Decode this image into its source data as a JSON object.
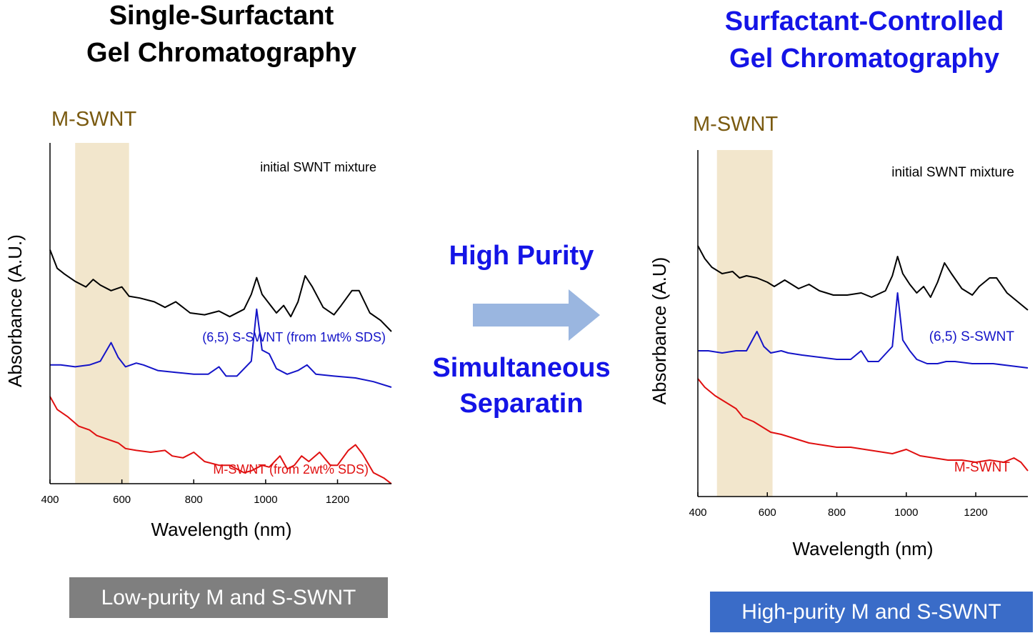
{
  "left_title": {
    "line1": "Single-Surfactant",
    "line2": "Gel Chromatography"
  },
  "right_title": {
    "line1": "Surfactant-Controlled",
    "line2": "Gel Chromatography"
  },
  "middle": {
    "line1": "High Purity",
    "line2": "Simultaneous",
    "line3": "Separatin"
  },
  "arrow_icon": "right-arrow-icon",
  "left_badge": "Low-purity M and S-SWNT",
  "right_badge": "High-purity M and S-SWNT",
  "colors": {
    "black": "#000000",
    "blue": "#1414c8",
    "red": "#e01010",
    "highlight": "#f2e6cc",
    "title_blue": "#1414e6",
    "brown": "#7a5a10"
  },
  "chart_data": [
    {
      "type": "line",
      "title": "",
      "xlabel": "Wavelength (nm)",
      "ylabel": "Absorbance (A.U.)",
      "xlim": [
        400,
        1350
      ],
      "xticks": [
        400,
        600,
        800,
        1000,
        1200
      ],
      "highlight": {
        "label": "M-SWNT",
        "x_range": [
          470,
          620
        ]
      },
      "series": [
        {
          "name": "initial SWNT mixture",
          "color": "#000000",
          "offset": 0.74,
          "x": [
            400,
            420,
            440,
            470,
            500,
            520,
            540,
            570,
            600,
            620,
            650,
            690,
            720,
            750,
            790,
            830,
            870,
            900,
            940,
            960,
            975,
            990,
            1010,
            1030,
            1050,
            1070,
            1090,
            1110,
            1130,
            1160,
            1190,
            1210,
            1240,
            1260,
            1290,
            1320,
            1350
          ],
          "y": [
            0.3,
            0.2,
            0.17,
            0.13,
            0.1,
            0.14,
            0.11,
            0.08,
            0.1,
            0.05,
            0.04,
            0.02,
            -0.01,
            0.02,
            -0.04,
            -0.05,
            -0.03,
            -0.06,
            -0.02,
            0.06,
            0.15,
            0.06,
            0.01,
            -0.04,
            0.0,
            -0.06,
            0.02,
            0.16,
            0.1,
            -0.01,
            -0.05,
            0.0,
            0.08,
            0.08,
            -0.04,
            -0.08,
            -0.14
          ]
        },
        {
          "name": "(6,5) S-SWNT (from 1wt% SDS)",
          "color": "#1414c8",
          "offset": 0.42,
          "x": [
            400,
            430,
            470,
            510,
            540,
            570,
            590,
            610,
            640,
            660,
            700,
            750,
            800,
            840,
            870,
            890,
            920,
            960,
            975,
            990,
            1010,
            1030,
            1060,
            1090,
            1115,
            1140,
            1190,
            1250,
            1300,
            1350
          ],
          "y": [
            0.0,
            0.0,
            -0.01,
            0.0,
            0.02,
            0.12,
            0.04,
            -0.01,
            0.01,
            0.0,
            -0.03,
            -0.04,
            -0.05,
            -0.05,
            -0.01,
            -0.06,
            -0.06,
            0.02,
            0.3,
            0.08,
            0.06,
            -0.02,
            -0.05,
            -0.03,
            0.0,
            -0.05,
            -0.06,
            -0.07,
            -0.09,
            -0.12
          ]
        },
        {
          "name": "M-SWNT (from 2wt% SDS)",
          "color": "#e01010",
          "offset": 0.0,
          "x": [
            400,
            420,
            450,
            480,
            510,
            530,
            560,
            590,
            610,
            640,
            680,
            720,
            740,
            770,
            800,
            830,
            870,
            900,
            940,
            960,
            990,
            1010,
            1040,
            1060,
            1080,
            1100,
            1120,
            1150,
            1180,
            1200,
            1230,
            1250,
            1270,
            1300,
            1330,
            1350
          ],
          "y": [
            0.25,
            0.18,
            0.14,
            0.09,
            0.07,
            0.04,
            0.02,
            0.0,
            -0.03,
            -0.04,
            -0.05,
            -0.04,
            -0.07,
            -0.08,
            -0.05,
            -0.1,
            -0.12,
            -0.12,
            -0.16,
            -0.15,
            -0.12,
            -0.13,
            -0.07,
            -0.14,
            -0.12,
            -0.07,
            -0.1,
            -0.05,
            -0.12,
            -0.12,
            -0.04,
            -0.01,
            -0.06,
            -0.16,
            -0.19,
            -0.22
          ]
        }
      ],
      "labels": [
        "initial SWNT mixture",
        "(6,5) S-SWNT (from 1wt% SDS)",
        "M-SWNT (from 2wt% SDS)"
      ]
    },
    {
      "type": "line",
      "title": "",
      "xlabel": "Wavelength (nm)",
      "ylabel": "Absorbance (A.U)",
      "xlim": [
        400,
        1350
      ],
      "xticks": [
        400,
        600,
        800,
        1000,
        1200
      ],
      "highlight": {
        "label": "M-SWNT",
        "x_range": [
          455,
          615
        ]
      },
      "series": [
        {
          "name": "initial SWNT mixture",
          "color": "#000000",
          "offset": 0.74,
          "x": [
            400,
            420,
            440,
            470,
            500,
            520,
            540,
            570,
            600,
            620,
            650,
            690,
            720,
            750,
            790,
            830,
            870,
            900,
            940,
            960,
            975,
            990,
            1010,
            1030,
            1050,
            1070,
            1090,
            1110,
            1130,
            1160,
            1190,
            1210,
            1240,
            1260,
            1290,
            1320,
            1350
          ],
          "y": [
            0.18,
            0.12,
            0.08,
            0.05,
            0.06,
            0.03,
            0.04,
            0.03,
            0.01,
            -0.01,
            0.02,
            -0.02,
            0.0,
            -0.03,
            -0.05,
            -0.05,
            -0.04,
            -0.06,
            -0.03,
            0.04,
            0.13,
            0.05,
            0.0,
            -0.04,
            -0.01,
            -0.06,
            0.01,
            0.1,
            0.05,
            -0.02,
            -0.05,
            -0.01,
            0.03,
            0.03,
            -0.04,
            -0.08,
            -0.12
          ]
        },
        {
          "name": "(6,5) S-SWNT",
          "color": "#1414c8",
          "offset": 0.43,
          "x": [
            400,
            430,
            470,
            510,
            540,
            570,
            590,
            610,
            640,
            660,
            700,
            750,
            800,
            840,
            870,
            890,
            920,
            960,
            975,
            990,
            1010,
            1030,
            1060,
            1090,
            1115,
            1140,
            1190,
            1250,
            1300,
            1350
          ],
          "y": [
            0.0,
            0.0,
            -0.01,
            0.0,
            0.0,
            0.09,
            0.02,
            -0.01,
            0.0,
            -0.01,
            -0.02,
            -0.03,
            -0.04,
            -0.04,
            0.0,
            -0.05,
            -0.05,
            0.02,
            0.27,
            0.05,
            0.0,
            -0.04,
            -0.06,
            -0.06,
            -0.05,
            -0.05,
            -0.06,
            -0.06,
            -0.07,
            -0.08
          ]
        },
        {
          "name": "M-SWNT",
          "color": "#e01010",
          "offset": 0.0,
          "x": [
            400,
            420,
            450,
            480,
            510,
            530,
            560,
            590,
            610,
            640,
            680,
            720,
            760,
            800,
            840,
            880,
            920,
            960,
            1000,
            1040,
            1080,
            1120,
            1160,
            1200,
            1240,
            1280,
            1310,
            1330,
            1350
          ],
          "y": [
            0.3,
            0.26,
            0.22,
            0.19,
            0.16,
            0.12,
            0.1,
            0.07,
            0.05,
            0.04,
            0.02,
            0.0,
            -0.01,
            -0.02,
            -0.02,
            -0.03,
            -0.04,
            -0.05,
            -0.03,
            -0.06,
            -0.07,
            -0.08,
            -0.08,
            -0.09,
            -0.08,
            -0.09,
            -0.07,
            -0.09,
            -0.13
          ]
        }
      ],
      "labels": [
        "initial SWNT mixture",
        "(6,5) S-SWNT",
        "M-SWNT"
      ]
    }
  ]
}
